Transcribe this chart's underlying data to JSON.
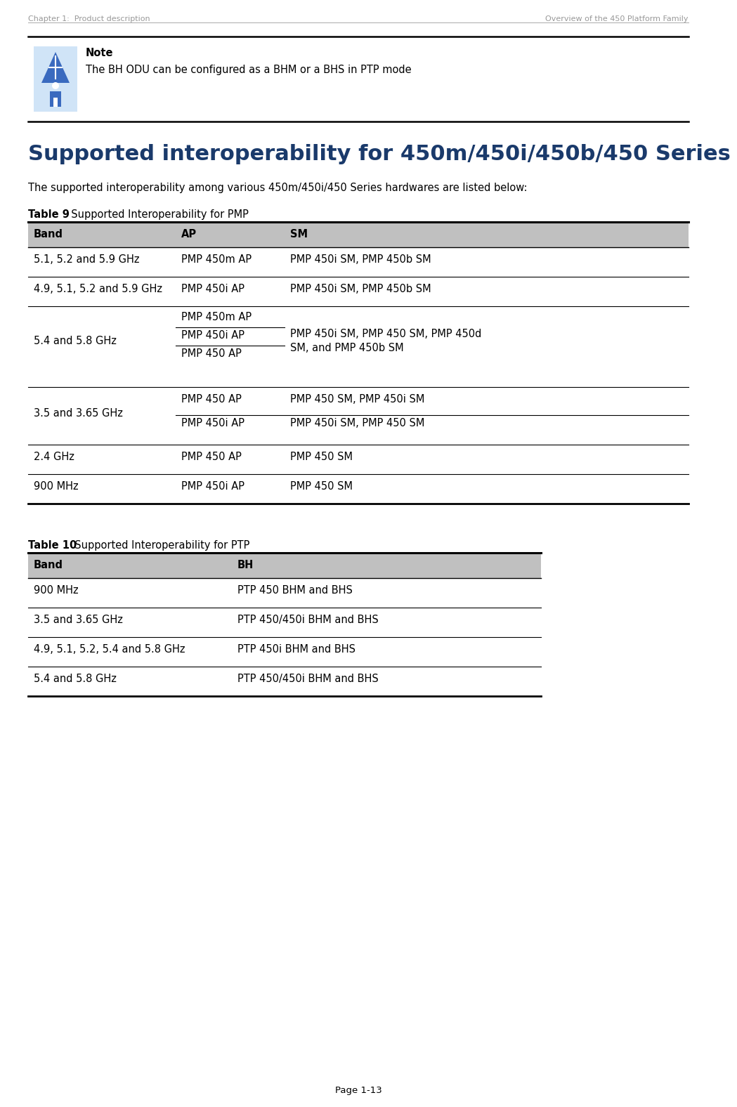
{
  "page_header_left": "Chapter 1:  Product description",
  "page_header_right": "Overview of the 450 Platform Family",
  "page_footer": "Page 1-13",
  "note_text": "The BH ODU can be configured as a BHM or a BHS in PTP mode",
  "section_title": "Supported interoperability for 450m/450i/450b/450 Series",
  "intro_text": "The supported interoperability among various 450m/450i/450 Series hardwares are listed below:",
  "table9_label_bold": "Table 9",
  "table9_label_rest": "  Supported Interoperability for PMP",
  "table10_label_bold": "Table 10",
  "table10_label_rest": "  Supported Interoperability for PTP",
  "table9_header_bg": "#c0c0c0",
  "table10_header_bg": "#c0c0c0",
  "table10_rows": [
    {
      "band": "900 MHz",
      "bh": "PTP 450 BHM and BHS"
    },
    {
      "band": "3.5 and 3.65 GHz",
      "bh": "PTP 450/450i BHM and BHS"
    },
    {
      "band": "4.9, 5.1, 5.2, 5.4 and 5.8 GHz",
      "bh": "PTP 450i BHM and BHS"
    },
    {
      "band": "5.4 and 5.8 GHz",
      "bh": "PTP 450/450i BHM and BHS"
    }
  ],
  "bg_color": "#ffffff",
  "header_text_color": "#999999",
  "title_color": "#1a3a6b",
  "black": "#000000",
  "note_icon_bg": "#d0e4f7",
  "note_icon_blue": "#3a6abf"
}
